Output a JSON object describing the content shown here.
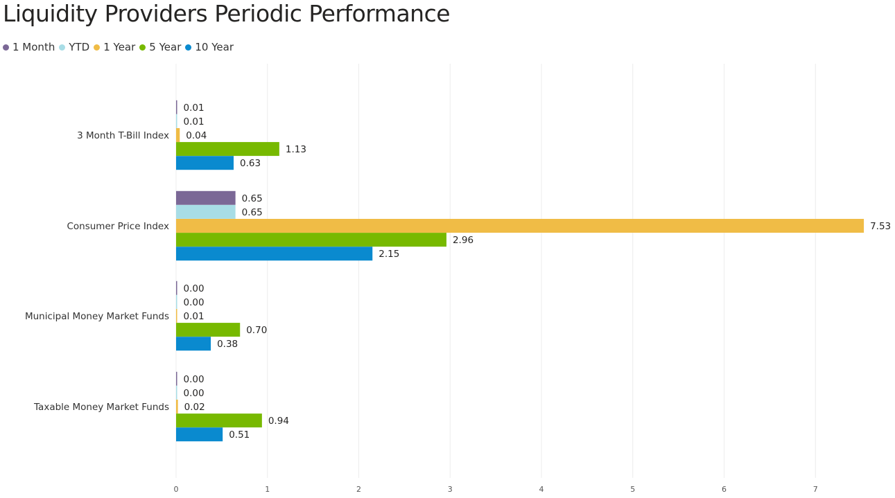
{
  "title": "Liquidity Providers Periodic Performance",
  "chart_data": {
    "type": "bar",
    "orientation": "horizontal",
    "title": "Liquidity Providers Periodic Performance",
    "categories": [
      "3 Month T-Bill Index",
      "Consumer Price Index",
      "Municipal Money Market Funds",
      "Taxable Money Market Funds"
    ],
    "series": [
      {
        "name": "1 Month",
        "color": "#7B6896",
        "values": [
          0.01,
          0.65,
          0.0,
          0.0
        ]
      },
      {
        "name": "YTD",
        "color": "#A8DDE6",
        "values": [
          0.01,
          0.65,
          0.0,
          0.0
        ]
      },
      {
        "name": "1 Year",
        "color": "#F0BC46",
        "values": [
          0.04,
          7.53,
          0.01,
          0.02
        ]
      },
      {
        "name": "5 Year",
        "color": "#77B900",
        "values": [
          1.13,
          2.96,
          0.7,
          0.94
        ]
      },
      {
        "name": "10 Year",
        "color": "#0A8ACF",
        "values": [
          0.63,
          2.15,
          0.38,
          0.51
        ]
      }
    ],
    "x_ticks": [
      0,
      1,
      2,
      3,
      4,
      5,
      6,
      7
    ],
    "xlim": [
      0,
      7.6
    ],
    "grid": true,
    "legend_position": "top-left"
  }
}
